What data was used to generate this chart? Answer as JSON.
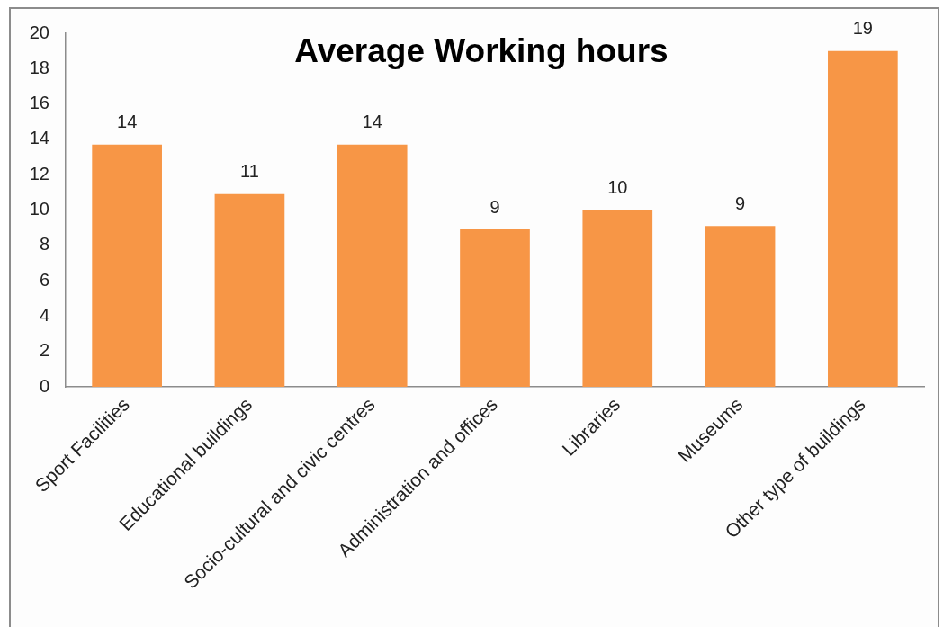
{
  "chart_data": {
    "type": "bar",
    "title": "Average Working hours",
    "categories": [
      "Sport Facilities",
      "Educational buildings",
      "Socio-cultural and civic centres",
      "Administration and offices",
      "Libraries",
      "Museums",
      "Other type of buildings"
    ],
    "values": [
      13.7,
      10.9,
      13.7,
      8.9,
      10.0,
      9.1,
      19.0
    ],
    "value_labels": [
      "14",
      "11",
      "14",
      "9",
      "10",
      "9",
      "19"
    ],
    "color": "#f79646",
    "ylim": [
      0,
      20
    ],
    "yticks": [
      0,
      2,
      4,
      6,
      8,
      10,
      12,
      14,
      16,
      18,
      20
    ]
  }
}
